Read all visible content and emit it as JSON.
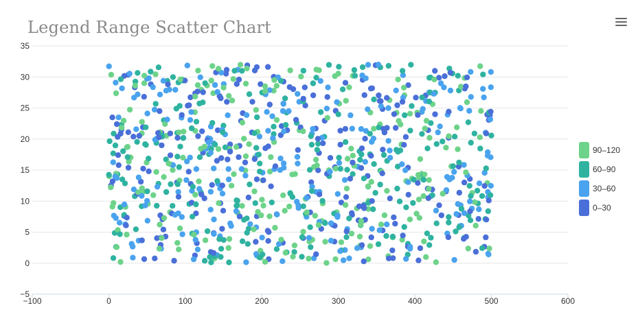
{
  "chart_data": {
    "type": "scatter",
    "title": "Legend Range Scatter Chart",
    "xlabel": "",
    "ylabel": "",
    "xlim": [
      -100,
      600
    ],
    "ylim": [
      -5,
      35
    ],
    "x_ticks": [
      "−100",
      "0",
      "100",
      "200",
      "300",
      "400",
      "500",
      "600"
    ],
    "y_ticks": [
      "−5",
      "0",
      "5",
      "10",
      "15",
      "20",
      "25",
      "30",
      "35"
    ],
    "grid": "horizontal",
    "legend_position": "right",
    "point_count": 1000,
    "value_range_per_point": [
      0,
      120
    ],
    "x_range_of_points": [
      0,
      500
    ],
    "y_range_of_points": [
      0,
      32
    ],
    "legend": [
      {
        "label": "90–120",
        "color": "#6dd38a",
        "min": 90,
        "max": 120
      },
      {
        "label": "60–90",
        "color": "#2fb3a0",
        "min": 60,
        "max": 90
      },
      {
        "label": "30–60",
        "color": "#4aa3ee",
        "min": 30,
        "max": 60
      },
      {
        "label": "0–30",
        "color": "#4a6fd8",
        "min": 0,
        "max": 30
      }
    ],
    "point_generation": "uniform random x in [0,500], y in [0,32], value in [0,120]"
  },
  "menu": {
    "icon": "hamburger-menu-icon"
  }
}
